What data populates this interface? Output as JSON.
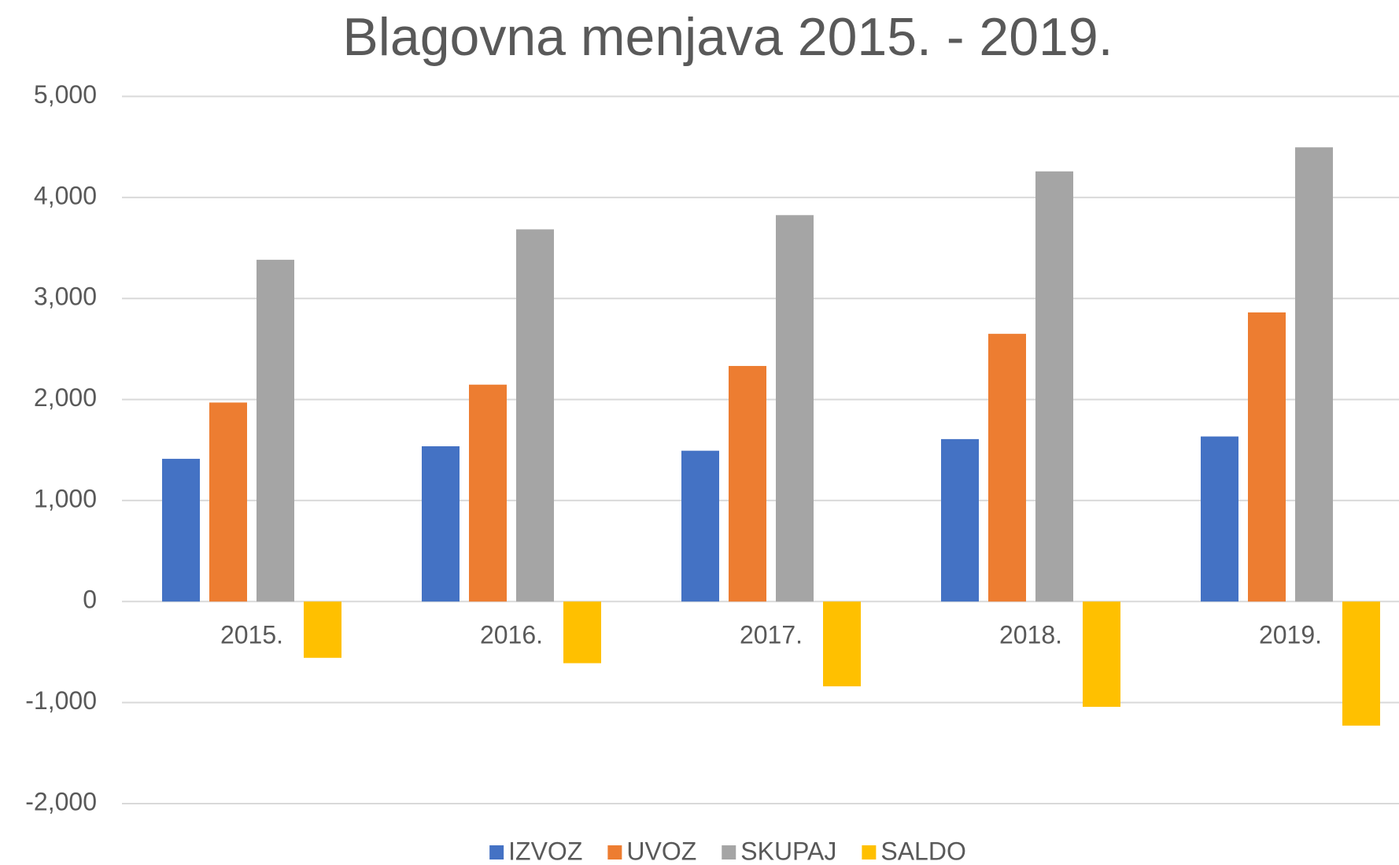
{
  "chart_data": {
    "type": "bar",
    "title": "Blagovna menjava 2015. - 2019.",
    "categories": [
      "2015.",
      "2016.",
      "2017.",
      "2018.",
      "2019."
    ],
    "series": [
      {
        "name": "IZVOZ",
        "color": "#4472c4",
        "values": [
          1413,
          1537,
          1493,
          1608,
          1634
        ]
      },
      {
        "name": "UVOZ",
        "color": "#ed7d31",
        "values": [
          1970,
          2147,
          2332,
          2650,
          2862
        ]
      },
      {
        "name": "SKUPAJ",
        "color": "#a5a5a5",
        "values": [
          3383,
          3684,
          3825,
          4258,
          4496
        ]
      },
      {
        "name": "SALDO",
        "color": "#ffc000",
        "values": [
          -557,
          -610,
          -839,
          -1042,
          -1228
        ]
      }
    ],
    "ylim": [
      -2000,
      5000
    ],
    "yticks": [
      {
        "value": -2000,
        "label": "-2,000"
      },
      {
        "value": -1000,
        "label": "-1,000"
      },
      0,
      {
        "value": 1000,
        "label": "1,000"
      },
      {
        "value": 2000,
        "label": "2,000"
      },
      {
        "value": 3000,
        "label": "3,000"
      },
      {
        "value": 4000,
        "label": "4,000"
      },
      {
        "value": 5000,
        "label": "5,000"
      }
    ],
    "grid": true,
    "legend": "bottom"
  }
}
